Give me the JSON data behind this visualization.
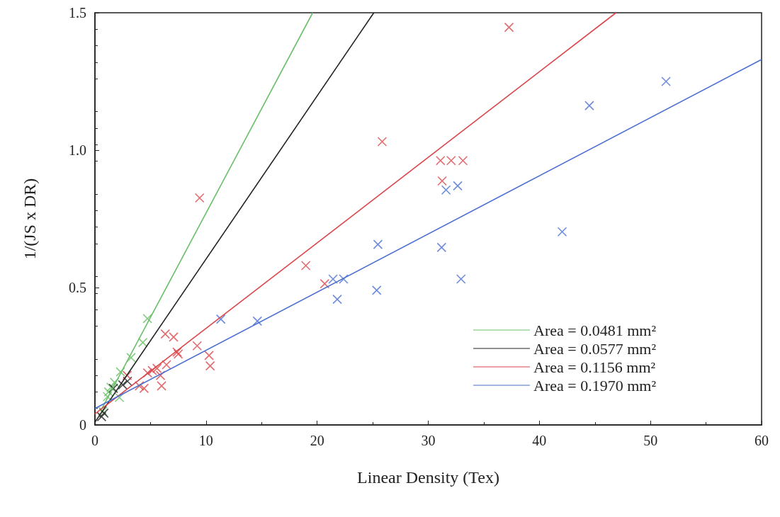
{
  "chart_data": {
    "type": "scatter",
    "xlabel": "Linear Density (Tex)",
    "ylabel": "1/(JS x DR)",
    "xlim": [
      0,
      60
    ],
    "xticks": [
      0,
      10,
      20,
      30,
      40,
      50,
      60
    ],
    "ylim": [
      0,
      1.5
    ],
    "yticks": [
      0,
      0.5,
      {
        "value": 1,
        "label": "1.0"
      },
      1.5
    ],
    "grid": false,
    "legend": "bottom right",
    "series": [
      {
        "marker": "cross",
        "color": "#6abf69",
        "x": [
          4.73,
          4.31,
          3.25,
          2.3,
          1.76,
          1.45,
          1.23,
          1.13,
          2.2,
          0.7
        ],
        "values": [
          0.387,
          0.3,
          0.245,
          0.193,
          0.155,
          0.137,
          0.12,
          0.103,
          0.1,
          0.05
        ]
      },
      {
        "marker": "cross",
        "color": "#222222",
        "x": [
          2.93,
          2.5,
          1.66,
          0.81,
          0.6
        ],
        "values": [
          0.159,
          0.146,
          0.133,
          0.043,
          0.03
        ]
      },
      {
        "marker": "cross",
        "color": "#d9474b",
        "x": [
          6.33,
          7.08,
          7.5,
          7.4,
          9.2,
          10.27,
          10.37,
          2.9,
          4.0,
          4.42,
          4.74,
          5.16,
          5.59,
          5.9,
          6.44,
          6.0,
          9.42,
          18.98,
          20.68,
          37.27,
          25.85,
          31.1,
          32.06,
          33.12,
          31.25
        ],
        "values": [
          0.331,
          0.32,
          0.258,
          0.265,
          0.288,
          0.253,
          0.215,
          0.18,
          0.142,
          0.133,
          0.189,
          0.198,
          0.206,
          0.18,
          0.219,
          0.142,
          0.826,
          0.58,
          0.514,
          1.447,
          1.031,
          0.962,
          0.962,
          0.962,
          0.888
        ]
      },
      {
        "marker": "cross",
        "color": "#4a6fd0",
        "x": [
          51.4,
          44.5,
          32.65,
          31.6,
          25.47,
          31.2,
          42.05,
          32.95,
          25.36,
          11.33,
          14.62,
          21.43,
          22.38,
          21.81
        ],
        "values": [
          1.25,
          1.162,
          0.87,
          0.855,
          0.657,
          0.646,
          0.703,
          0.531,
          0.49,
          0.385,
          0.378,
          0.531,
          0.531,
          0.457
        ]
      },
      {
        "type": "line",
        "marker": "none",
        "name": "Area = 0.0481 mm²",
        "color": "#6abf69",
        "x": [
          0.5,
          19.6
        ],
        "values": [
          0.05,
          1.5
        ]
      },
      {
        "type": "line",
        "marker": "none",
        "name": "Area = 0.0577 mm²",
        "color": "#222222",
        "x": [
          0,
          25.1
        ],
        "values": [
          0.01,
          1.5
        ]
      },
      {
        "type": "line",
        "marker": "none",
        "name": "Area = 0.1156 mm²",
        "color": "#d9474b",
        "x": [
          0,
          46.9
        ],
        "values": [
          0.04,
          1.5
        ]
      },
      {
        "type": "line",
        "marker": "none",
        "name": "Area = 0.1970 mm²",
        "color": "#4a6fd0",
        "x": [
          0,
          60
        ],
        "values": [
          0.06,
          1.33
        ]
      }
    ]
  }
}
